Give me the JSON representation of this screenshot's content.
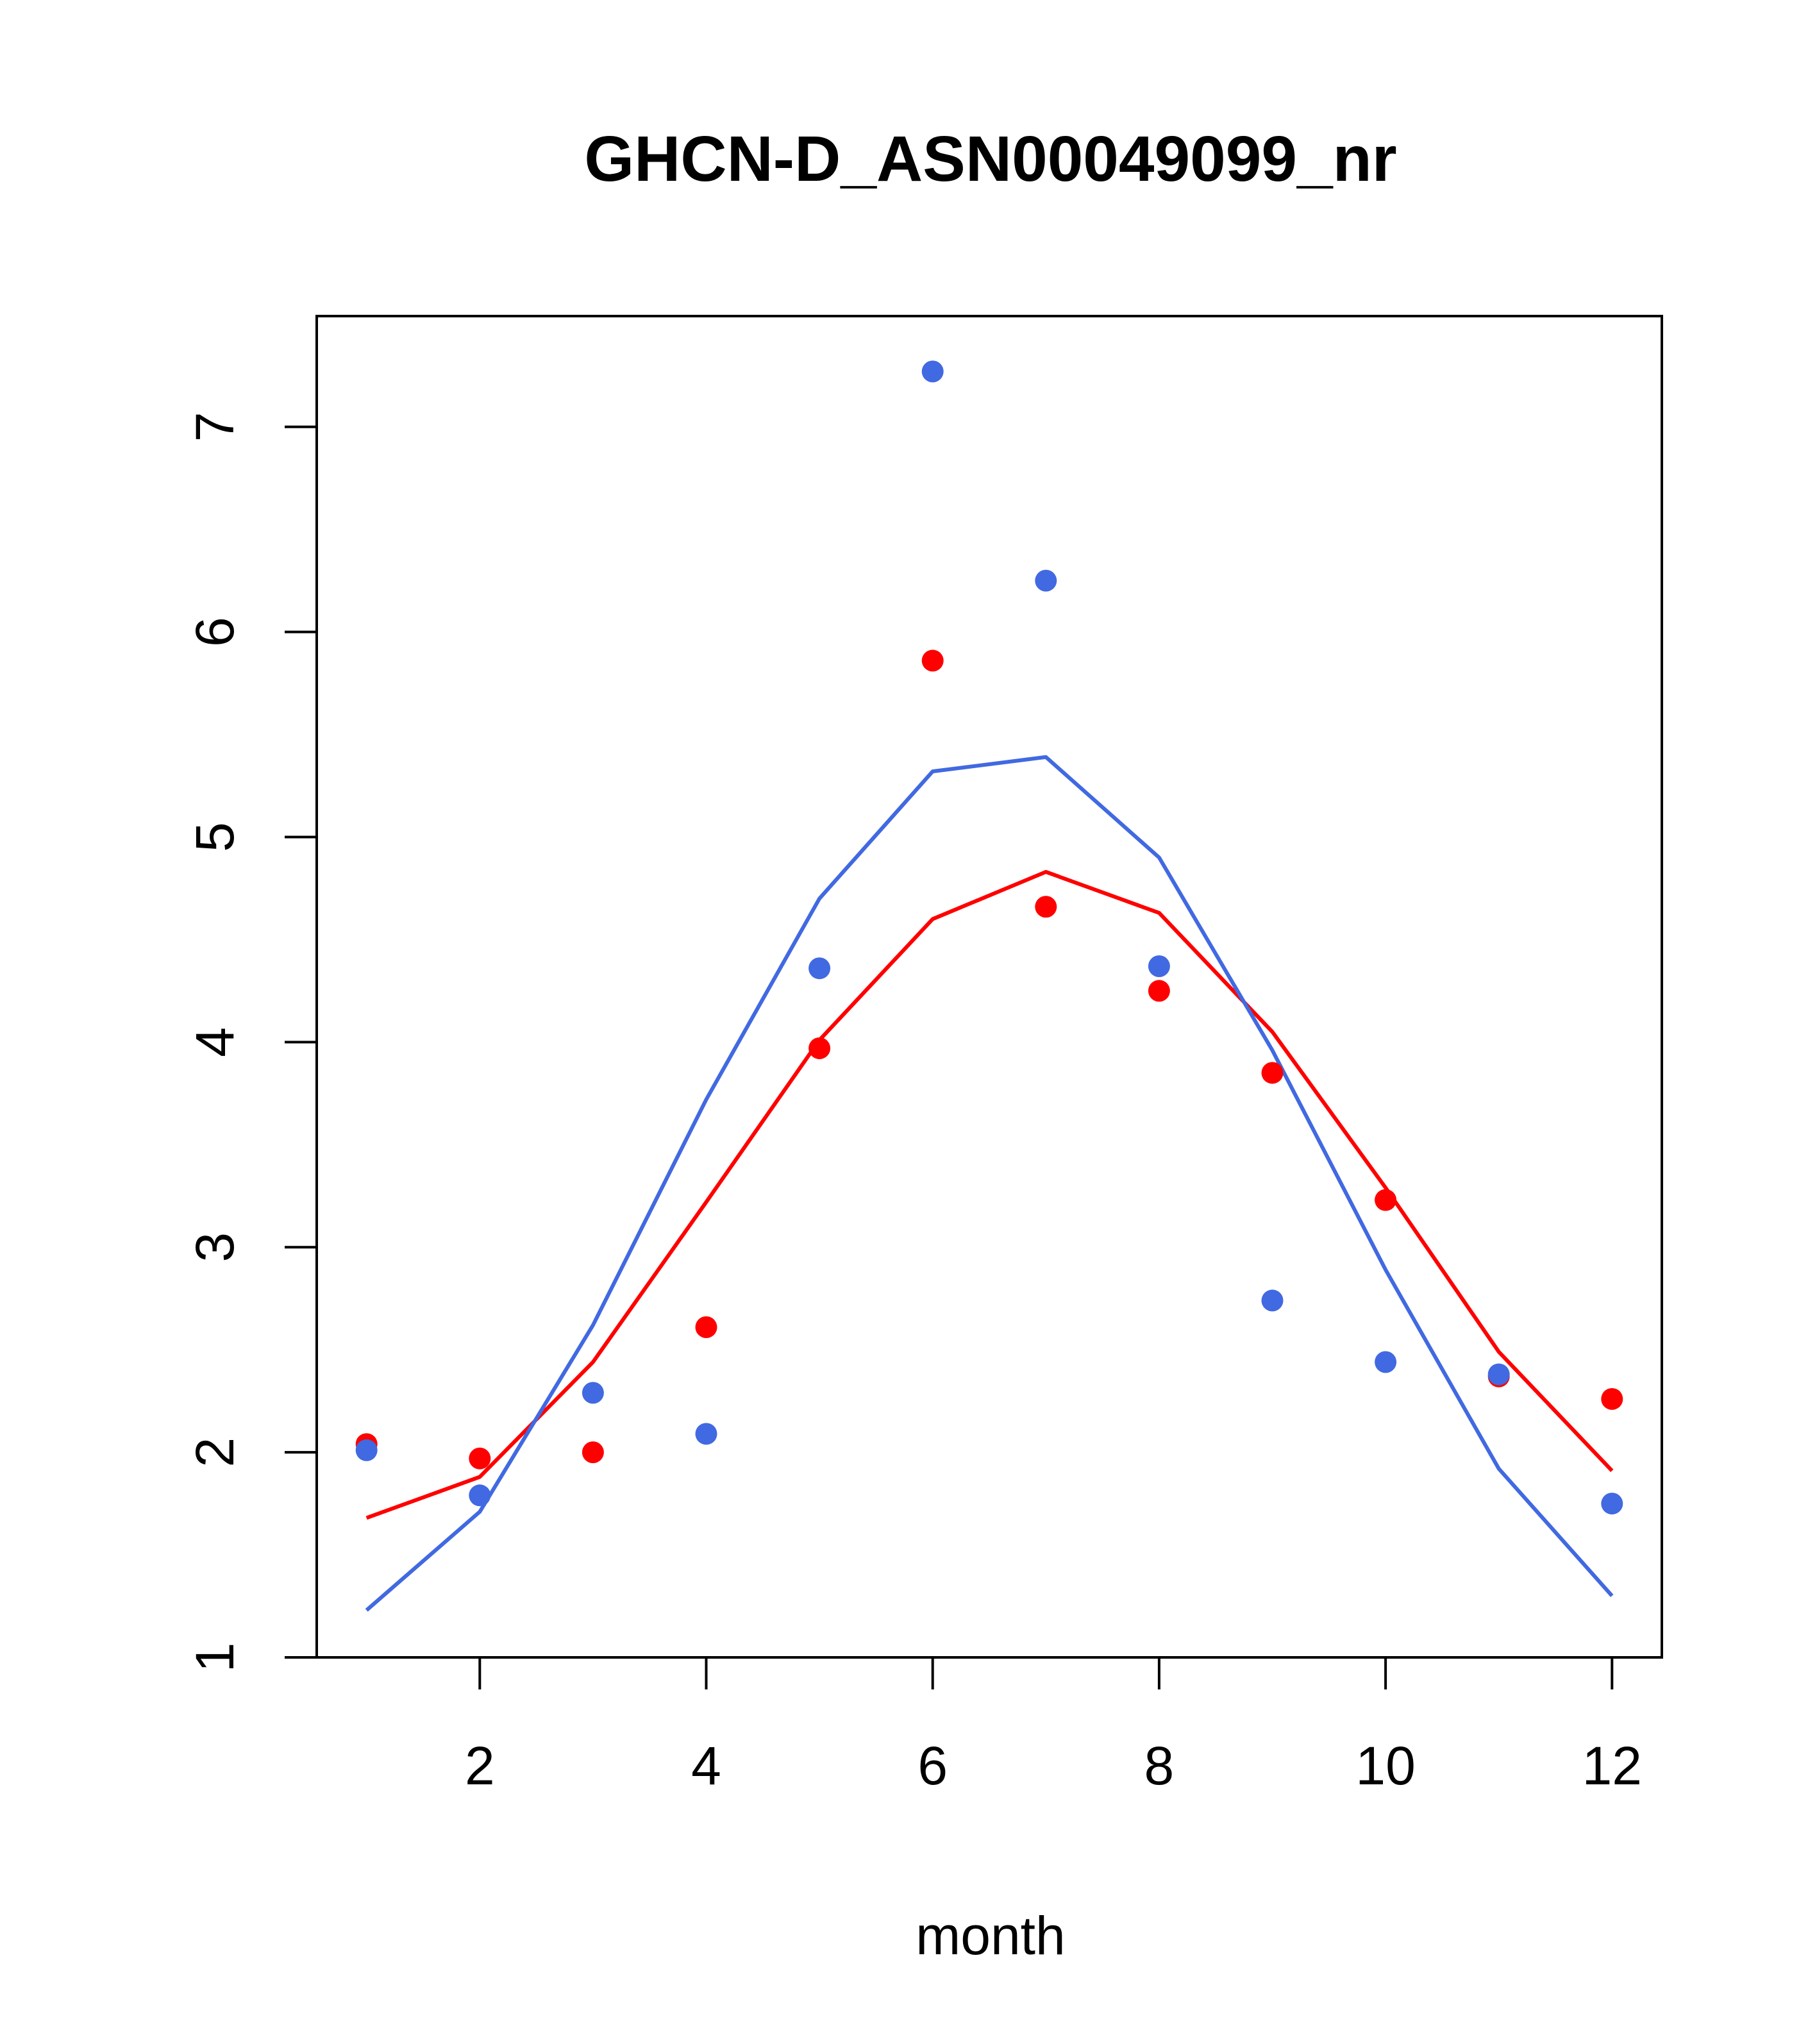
{
  "chart_data": {
    "type": "line",
    "title": "GHCN-D_ASN00049099_nr",
    "xlabel": "month",
    "ylabel": "",
    "xlim": [
      0.56,
      12.44
    ],
    "ylim": [
      1.0,
      7.54
    ],
    "xticks": [
      2,
      4,
      6,
      8,
      10,
      12
    ],
    "yticks": [
      1,
      2,
      3,
      4,
      5,
      6,
      7
    ],
    "grid": false,
    "legend": "none",
    "x": [
      1,
      2,
      3,
      4,
      5,
      6,
      7,
      8,
      9,
      10,
      11,
      12
    ],
    "series": [
      {
        "color": "#FF0000",
        "points": [
          2.04,
          1.97,
          2.0,
          2.61,
          3.97,
          5.86,
          4.66,
          4.25,
          3.85,
          3.23,
          2.37,
          2.26
        ],
        "line": [
          1.68,
          1.88,
          2.44,
          3.22,
          4.01,
          4.6,
          4.83,
          4.63,
          4.05,
          3.29,
          2.49,
          1.91
        ]
      },
      {
        "color": "#4169E1",
        "points": [
          2.01,
          1.79,
          2.29,
          2.09,
          4.36,
          7.27,
          6.25,
          4.37,
          2.74,
          2.44,
          2.38,
          1.75
        ],
        "line": [
          1.23,
          1.71,
          2.62,
          3.72,
          4.7,
          5.32,
          5.39,
          4.9,
          3.96,
          2.89,
          1.92,
          1.3
        ]
      }
    ]
  }
}
